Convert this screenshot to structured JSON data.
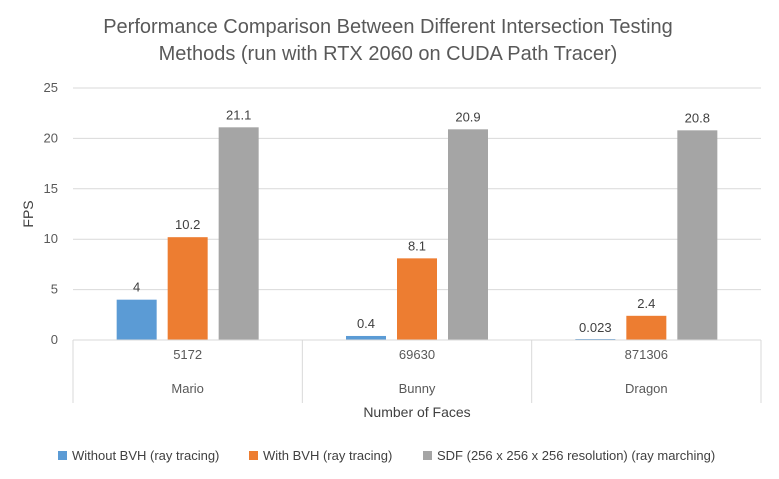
{
  "chart_data": {
    "type": "bar",
    "title": [
      "Performance Comparison Between Different Intersection Testing",
      "Methods (run with RTX 2060 on CUDA Path Tracer)"
    ],
    "ylabel": "FPS",
    "xlabel": "Number of Faces",
    "ylim": [
      0,
      25
    ],
    "yticks": [
      0,
      5,
      10,
      15,
      20,
      25
    ],
    "grid": true,
    "legend_position": "bottom",
    "categories": [
      {
        "faces": "5172",
        "model": "Mario"
      },
      {
        "faces": "69630",
        "model": "Bunny"
      },
      {
        "faces": "871306",
        "model": "Dragon"
      }
    ],
    "series": [
      {
        "name": "Without BVH (ray tracing)",
        "color": "#5B9BD5",
        "values": [
          4,
          0.4,
          0.023
        ],
        "labels": [
          "4",
          "0.4",
          "0.023"
        ]
      },
      {
        "name": "With BVH (ray tracing)",
        "color": "#ED7D31",
        "values": [
          10.2,
          8.1,
          2.4
        ],
        "labels": [
          "10.2",
          "8.1",
          "2.4"
        ]
      },
      {
        "name": "SDF (256 x 256 x 256 resolution) (ray marching)",
        "color": "#A5A5A5",
        "values": [
          21.1,
          20.9,
          20.8
        ],
        "labels": [
          "21.1",
          "20.9",
          "20.8"
        ]
      }
    ]
  }
}
